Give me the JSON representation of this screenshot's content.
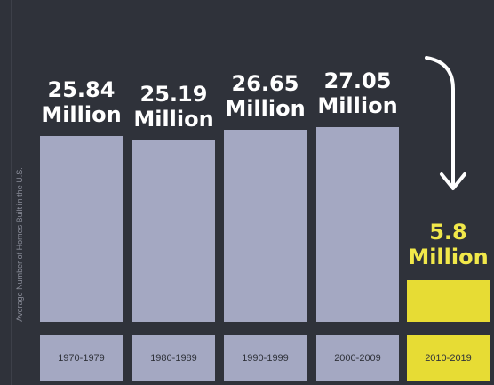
{
  "chart_data": {
    "type": "bar",
    "ylabel": "Average Number of Homes Built in the U.S.",
    "categories": [
      "1970-1979",
      "1980-1989",
      "1990-1999",
      "2000-2009",
      "2010-2019"
    ],
    "values": [
      25.84,
      25.19,
      26.65,
      27.05,
      5.8
    ],
    "value_labels": [
      "25.84 Million",
      "25.19 Million",
      "26.65 Million",
      "27.05 Million",
      "5.8 Million"
    ],
    "highlight_index": 4,
    "colors": {
      "bar": "#a4a8c2",
      "highlight": "#e7dc34",
      "highlight_text": "#f1e84a",
      "background": "#2f323a"
    },
    "annotations": [
      "downward arrow pointing to the 2010-2019 bar"
    ],
    "grid": false
  }
}
